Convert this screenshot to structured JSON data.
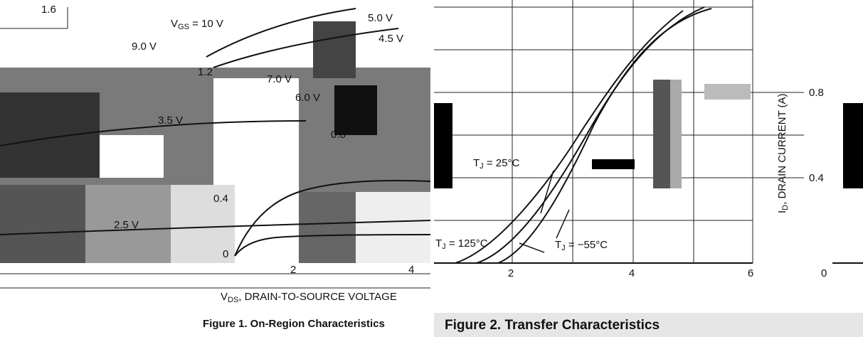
{
  "left_figure": {
    "y_top_label": "1.6",
    "curve_labels": [
      {
        "main": "V",
        "sub": "GS",
        "rest": " = 10 V"
      },
      "9.0 V",
      "5.0 V",
      "4.5 V",
      "7.0 V",
      "6.0 V",
      "3.5 V",
      "2.5 V"
    ],
    "inner_ticks": [
      "1.2",
      "0.8",
      "0.4",
      "0"
    ],
    "x_ticks": [
      "2",
      "4"
    ],
    "x_label": {
      "main": "V",
      "sub": "DS",
      "rest": ", DRAIN-TO-SOURCE VOLTAGE"
    },
    "caption": "Figure 1. On-Region Characteristics"
  },
  "right_figure": {
    "x_ticks": [
      "2",
      "4",
      "6"
    ],
    "y_ticks": [
      "0.8",
      "0.4",
      "0"
    ],
    "y_label": {
      "main": "I",
      "sub": "D",
      "rest": ", DRAIN CURRENT (A)"
    },
    "curve_labels": [
      {
        "main": "T",
        "sub": "J",
        "rest": " = 25°C"
      },
      {
        "main": "T",
        "sub": "J",
        "rest": " = 125°C"
      },
      {
        "main": "T",
        "sub": "J",
        "rest": " = −55°C"
      }
    ],
    "caption": "Figure 2. Transfer Characteristics"
  }
}
